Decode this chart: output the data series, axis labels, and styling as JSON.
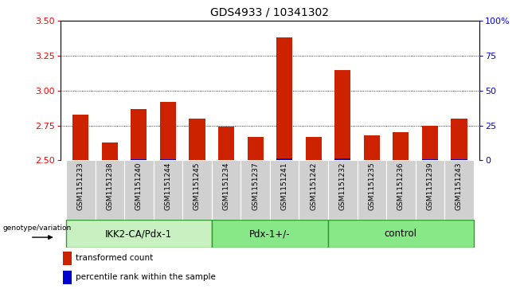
{
  "title": "GDS4933 / 10341302",
  "samples": [
    "GSM1151233",
    "GSM1151238",
    "GSM1151240",
    "GSM1151244",
    "GSM1151245",
    "GSM1151234",
    "GSM1151237",
    "GSM1151241",
    "GSM1151242",
    "GSM1151232",
    "GSM1151235",
    "GSM1151236",
    "GSM1151239",
    "GSM1151243"
  ],
  "red_values": [
    2.83,
    2.63,
    2.87,
    2.92,
    2.8,
    2.74,
    2.67,
    3.38,
    2.67,
    3.15,
    2.68,
    2.7,
    2.75,
    2.8
  ],
  "blue_pct": [
    3,
    2,
    4,
    6,
    3,
    2,
    3,
    9,
    2,
    8,
    3,
    3,
    4,
    4
  ],
  "groups": [
    {
      "label": "IKK2-CA/Pdx-1",
      "start": 0,
      "end": 5,
      "color": "#c8f0c0"
    },
    {
      "label": "Pdx-1+/-",
      "start": 5,
      "end": 9,
      "color": "#88e888"
    },
    {
      "label": "control",
      "start": 9,
      "end": 14,
      "color": "#88e888"
    }
  ],
  "ylim_left": [
    2.5,
    3.5
  ],
  "yticks_left": [
    2.5,
    2.75,
    3.0,
    3.25,
    3.5
  ],
  "ylim_right": [
    0,
    100
  ],
  "yticks_right": [
    0,
    25,
    50,
    75,
    100
  ],
  "bar_width": 0.55,
  "bar_bottom": 2.5,
  "red_color": "#cc2200",
  "blue_color": "#0000cc",
  "grid_color": "#000000",
  "sample_bg_color": "#cccccc",
  "group_label_prefix": "genotype/variation",
  "legend_red": "transformed count",
  "legend_blue": "percentile rank within the sample"
}
